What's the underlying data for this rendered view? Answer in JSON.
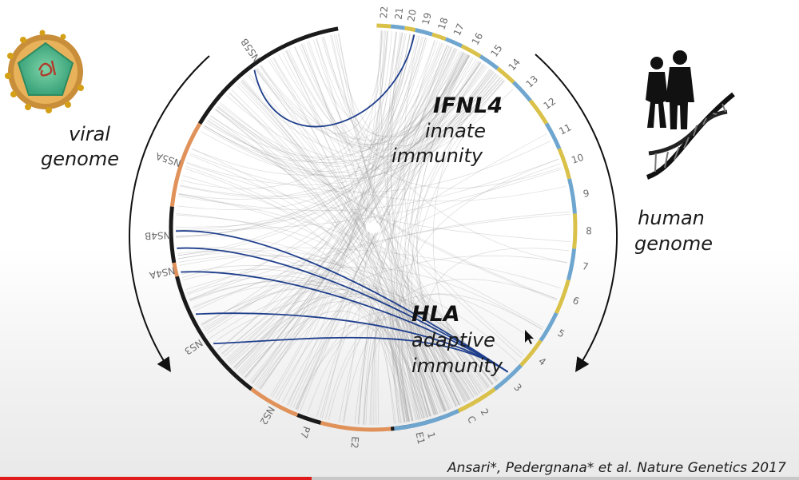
{
  "labels": {
    "viral_line1": "viral",
    "viral_line2": "genome",
    "human_line1": "human",
    "human_line2": "genome",
    "ifnl4_title": "IFNL4",
    "ifnl4_line1": "innate",
    "ifnl4_line2": "immunity",
    "hla_title": "HLA",
    "hla_line1": "adaptive",
    "hla_line2": "immunity"
  },
  "citation": "Ansari*, Pedergnana* et al. Nature Genetics 2017",
  "viral_segments": [
    {
      "label": "C",
      "color": "#e0925a"
    },
    {
      "label": "E1",
      "color": "#1a1a1a"
    },
    {
      "label": "E2",
      "color": "#e0925a"
    },
    {
      "label": "P7",
      "color": "#1a1a1a"
    },
    {
      "label": "NS2",
      "color": "#e0925a"
    },
    {
      "label": "NS3",
      "color": "#1a1a1a"
    },
    {
      "label": "NS4A",
      "color": "#e0925a"
    },
    {
      "label": "NS4B",
      "color": "#1a1a1a"
    },
    {
      "label": "NS5A",
      "color": "#e0925a"
    },
    {
      "label": "NS5B",
      "color": "#1a1a1a"
    }
  ],
  "human_chromosomes": [
    {
      "label": "1",
      "color": "#6fa6cf"
    },
    {
      "label": "2",
      "color": "#d9c14a"
    },
    {
      "label": "3",
      "color": "#6fa6cf"
    },
    {
      "label": "4",
      "color": "#d9c14a"
    },
    {
      "label": "5",
      "color": "#6fa6cf"
    },
    {
      "label": "6",
      "color": "#d9c14a"
    },
    {
      "label": "7",
      "color": "#6fa6cf"
    },
    {
      "label": "8",
      "color": "#d9c14a"
    },
    {
      "label": "9",
      "color": "#6fa6cf"
    },
    {
      "label": "10",
      "color": "#d9c14a"
    },
    {
      "label": "11",
      "color": "#6fa6cf"
    },
    {
      "label": "12",
      "color": "#d9c14a"
    },
    {
      "label": "13",
      "color": "#6fa6cf"
    },
    {
      "label": "14",
      "color": "#d9c14a"
    },
    {
      "label": "15",
      "color": "#6fa6cf"
    },
    {
      "label": "16",
      "color": "#d9c14a"
    },
    {
      "label": "17",
      "color": "#6fa6cf"
    },
    {
      "label": "18",
      "color": "#d9c14a"
    },
    {
      "label": "19",
      "color": "#6fa6cf"
    },
    {
      "label": "20",
      "color": "#d9c14a"
    },
    {
      "label": "21",
      "color": "#6fa6cf"
    },
    {
      "label": "22",
      "color": "#d9c14a"
    }
  ],
  "colors": {
    "highlight_link": "#1f3f8c",
    "background_link": "#9a9a9a",
    "video_progress": "#e01b1b"
  },
  "icons": [
    "virus-icon",
    "people-icon",
    "dna-helix-icon",
    "cursor-icon"
  ],
  "video_progress_fraction": 0.39
}
